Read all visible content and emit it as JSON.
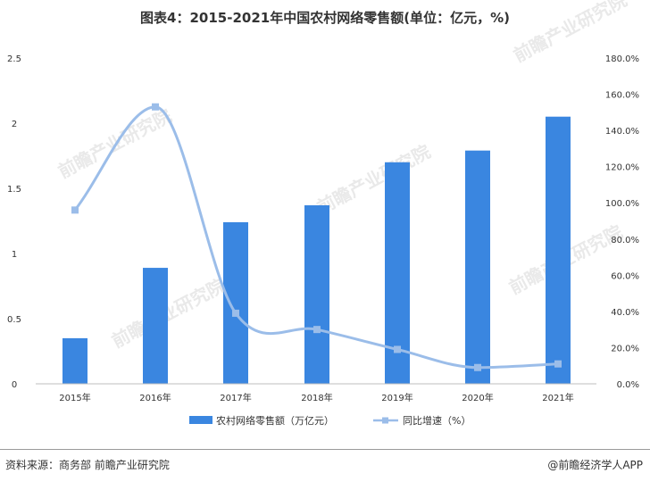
{
  "title": "图表4：2015-2021年中国农村网络零售额(单位：亿元，%)",
  "footer": {
    "source": "资料来源：商务部 前瞻产业研究院",
    "brand": "@前瞻经济学人APP"
  },
  "watermark": "前瞻产业研究院",
  "colors": {
    "bar": "#3a86e0",
    "line": "#9bbde9"
  },
  "chart_data": {
    "type": "bar+line",
    "categories": [
      "2015年",
      "2016年",
      "2017年",
      "2018年",
      "2019年",
      "2020年",
      "2021年"
    ],
    "series": [
      {
        "name": "农村网络零售额（万亿元）",
        "type": "bar",
        "axis": "left",
        "values": [
          0.35,
          0.89,
          1.24,
          1.37,
          1.7,
          1.79,
          2.05
        ]
      },
      {
        "name": "同比增速（%）",
        "type": "line",
        "axis": "right",
        "values": [
          96.0,
          153.0,
          39.0,
          30.0,
          19.0,
          9.0,
          11.0
        ]
      }
    ],
    "y_left": {
      "ylim": [
        0,
        2.5
      ],
      "ticks": [
        "0",
        "0.5",
        "1",
        "1.5",
        "2",
        "2.5"
      ]
    },
    "y_right": {
      "ylim": [
        0,
        180
      ],
      "ticks": [
        "0.0%",
        "20.0%",
        "40.0%",
        "60.0%",
        "80.0%",
        "100.0%",
        "120.0%",
        "140.0%",
        "160.0%",
        "180.0%"
      ]
    },
    "grid": false,
    "legend": "bottom"
  }
}
